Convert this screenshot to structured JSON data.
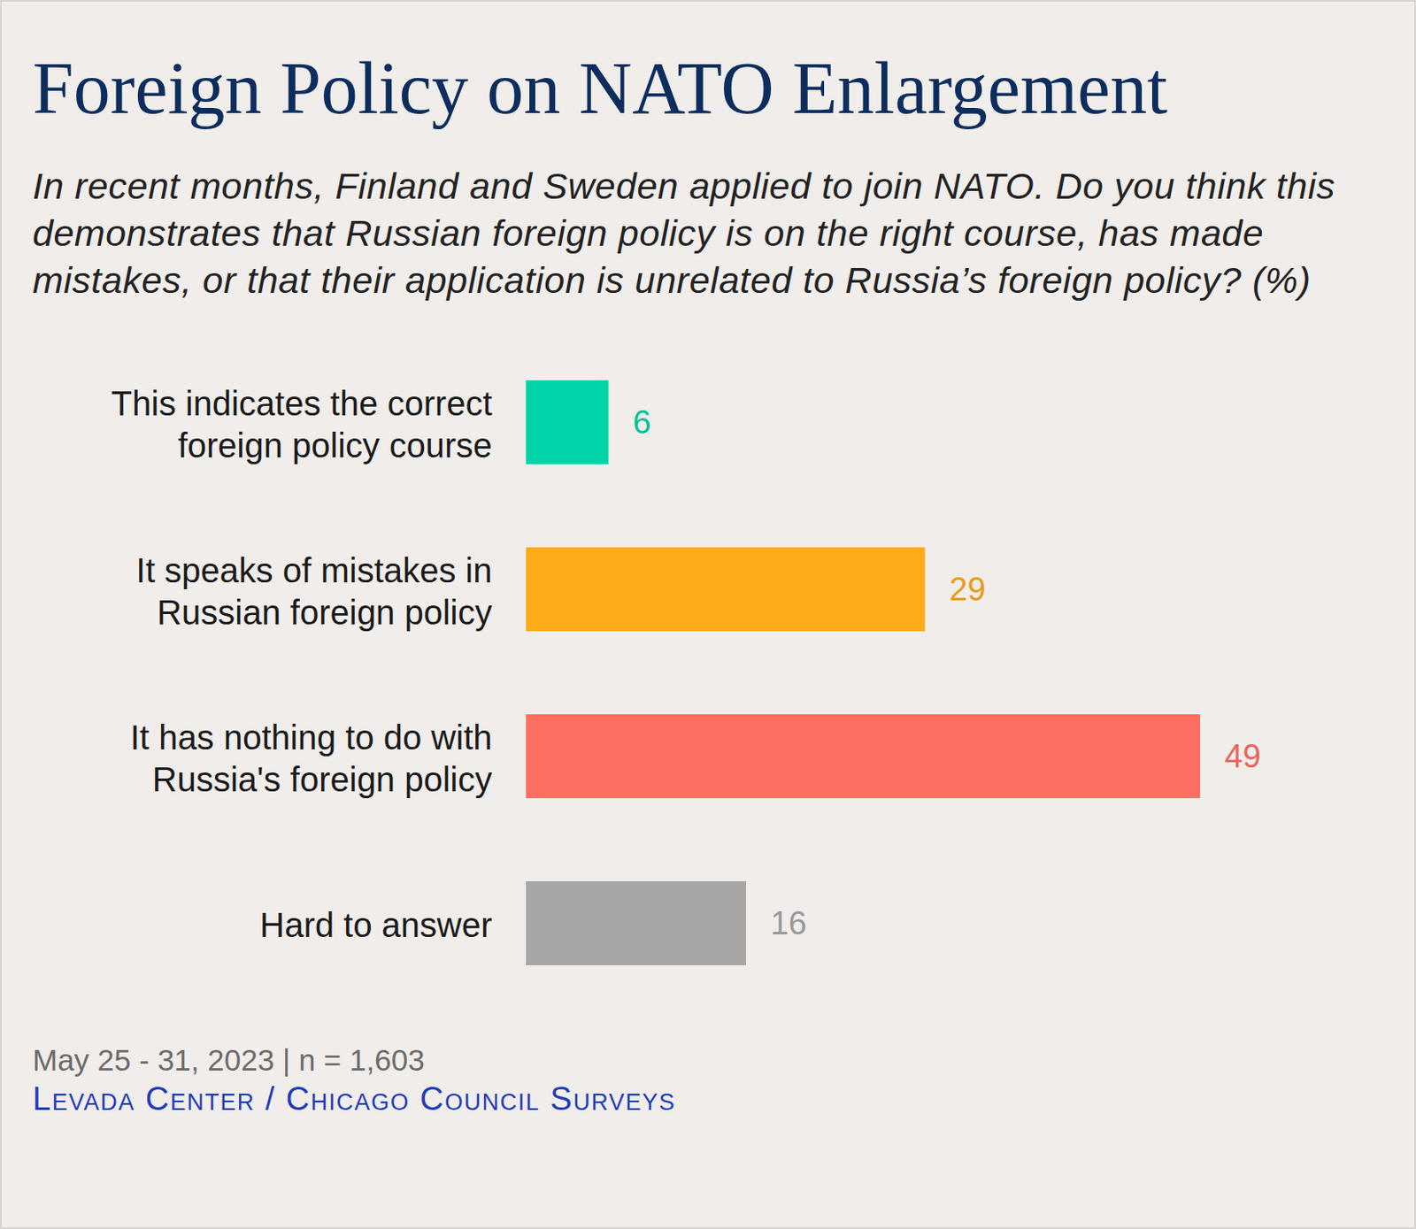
{
  "chart_data": {
    "type": "bar",
    "orientation": "horizontal",
    "title": "Foreign Policy on NATO Enlargement",
    "subtitle": "In recent months, Finland and Sweden applied to join NATO. Do you think this demonstrates that Russian foreign policy is on the right course, has made mistakes, or that their application is unrelated to Russia’s foreign policy? (%)",
    "categories": [
      "This indicates the correct foreign policy course",
      "It speaks of mistakes in Russian foreign policy",
      "It has nothing to do with Russia's foreign policy",
      "Hard to answer"
    ],
    "values": [
      6,
      29,
      49,
      16
    ],
    "colors": [
      "#00d4a6",
      "#ffab1a",
      "#ff6e63",
      "#a6a6a6"
    ],
    "xlim": [
      0,
      49
    ],
    "data_labels": true,
    "tick_labels": "y",
    "caption": "May 25 - 31, 2023 | n = 1,603",
    "source": "Levada Center / Chicago Council Surveys"
  }
}
